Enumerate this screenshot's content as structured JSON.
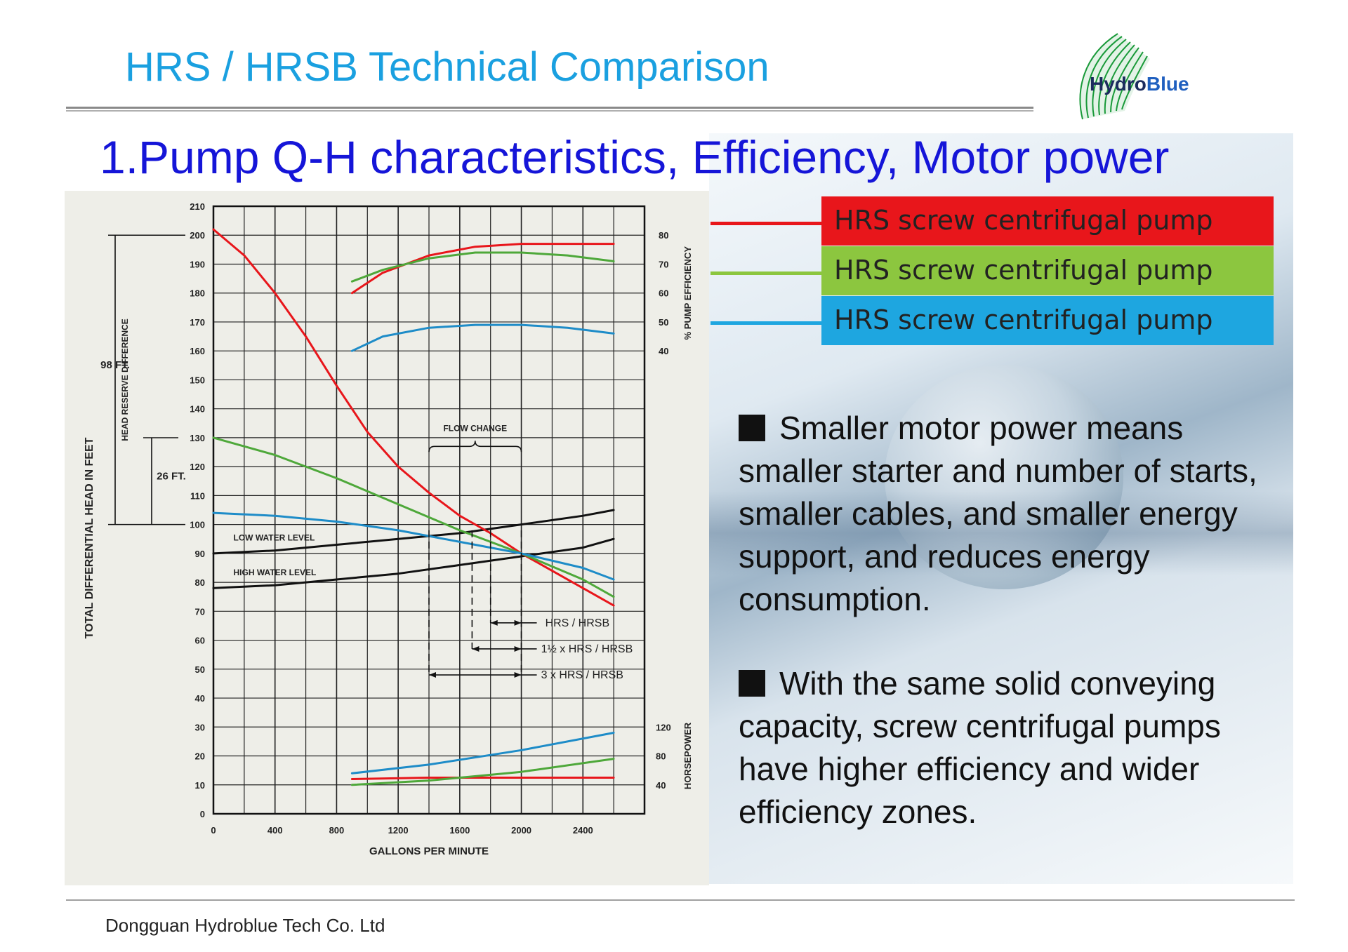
{
  "slide": {
    "title": "HRS / HRSB Technical Comparison",
    "section_heading": "1.Pump Q-H characteristics, Efficiency, Motor power",
    "footer": "Dongguan Hydroblue Tech Co. Ltd",
    "logo": {
      "text_dark": "Hydro",
      "text_blue": "Blue"
    }
  },
  "legend": [
    {
      "label": "HRS screw centrifugal pump",
      "color": "#e8161b"
    },
    {
      "label": "HRS screw centrifugal pump",
      "color": "#8cc63f"
    },
    {
      "label": "HRS screw centrifugal pump",
      "color": "#1ea6e0"
    }
  ],
  "bullets": [
    "Smaller motor power means smaller starter and number of starts, smaller cables, and smaller energy support, and reduces energy consumption.",
    "With the same solid conveying capacity, screw centrifugal pumps have higher efficiency and wider efficiency zones."
  ],
  "chart_data": {
    "type": "line",
    "xlabel": "GALLONS PER MINUTE",
    "ylabel": "TOTAL DIFFERENTIAL HEAD IN FEET",
    "y2label_efficiency": "% PUMP EFFICIENCY",
    "y2label_power": "HORSEPOWER",
    "x_ticks": [
      "0",
      "400",
      "800",
      "1200",
      "1600",
      "2000",
      "2400"
    ],
    "y_ticks": [
      "0",
      "10",
      "20",
      "30",
      "40",
      "50",
      "60",
      "70",
      "80",
      "90",
      "100",
      "110",
      "120",
      "130",
      "140",
      "150",
      "160",
      "170",
      "180",
      "190",
      "200",
      "210"
    ],
    "efficiency_ticks": [
      {
        "label": "80",
        "at": 200
      },
      {
        "label": "70",
        "at": 190
      },
      {
        "label": "60",
        "at": 180
      },
      {
        "label": "50",
        "at": 170
      },
      {
        "label": "40",
        "at": 160
      }
    ],
    "power_ticks": [
      {
        "label": "120",
        "at": 30
      },
      {
        "label": "80",
        "at": 20
      },
      {
        "label": "40",
        "at": 10
      }
    ],
    "xlim": [
      0,
      2800
    ],
    "ylim": [
      0,
      210
    ],
    "grid": true,
    "head_curves": [
      {
        "color": "#e8161b",
        "x": [
          0,
          200,
          400,
          600,
          800,
          1000,
          1200,
          1400,
          1600,
          1800,
          2000,
          2200,
          2400,
          2600
        ],
        "y": [
          202,
          193,
          180,
          165,
          148,
          132,
          120,
          111,
          103,
          97,
          90,
          84,
          78,
          72
        ]
      },
      {
        "color": "#4ea83a",
        "x": [
          0,
          400,
          800,
          1200,
          1600,
          2000,
          2400,
          2600
        ],
        "y": [
          130,
          124,
          116,
          107,
          98,
          90,
          81,
          75
        ]
      },
      {
        "color": "#1e8cc8",
        "x": [
          0,
          400,
          800,
          1200,
          1600,
          2000,
          2400,
          2600
        ],
        "y": [
          104,
          103,
          101,
          98,
          94,
          90,
          85,
          81
        ]
      }
    ],
    "system_curves": [
      {
        "label": "LOW WATER LEVEL",
        "x": [
          0,
          400,
          800,
          1200,
          1600,
          2000,
          2400,
          2600
        ],
        "y": [
          90,
          91,
          93,
          95,
          97,
          100,
          103,
          105
        ]
      },
      {
        "label": "HIGH WATER LEVEL",
        "x": [
          0,
          400,
          800,
          1200,
          1600,
          2000,
          2400,
          2600
        ],
        "y": [
          78,
          79,
          81,
          83,
          86,
          89,
          92,
          95
        ]
      }
    ],
    "efficiency_curves": [
      {
        "color": "#e8161b",
        "x": [
          900,
          1100,
          1400,
          1700,
          2000,
          2300,
          2600
        ],
        "y": [
          180,
          187,
          193,
          196,
          197,
          197,
          197
        ]
      },
      {
        "color": "#4ea83a",
        "x": [
          900,
          1100,
          1400,
          1700,
          2000,
          2300,
          2600
        ],
        "y": [
          184,
          188,
          192,
          194,
          194,
          193,
          191
        ]
      },
      {
        "color": "#1e8cc8",
        "x": [
          900,
          1100,
          1400,
          1700,
          2000,
          2300,
          2600
        ],
        "y": [
          160,
          165,
          168,
          169,
          169,
          168,
          166
        ]
      }
    ],
    "power_curves": [
      {
        "color": "#e8161b",
        "x": [
          900,
          1400,
          2000,
          2600
        ],
        "y": [
          12,
          12.5,
          12.5,
          12.5
        ]
      },
      {
        "color": "#4ea83a",
        "x": [
          900,
          1400,
          2000,
          2600
        ],
        "y": [
          10,
          11.5,
          14.5,
          19
        ]
      },
      {
        "color": "#1e8cc8",
        "x": [
          900,
          1400,
          2000,
          2600
        ],
        "y": [
          14,
          17,
          22,
          28
        ]
      }
    ],
    "annotations": {
      "head_reserve_label": "HEAD RESERVE DIFFERENCE",
      "span_98": {
        "label": "98 FT.",
        "from": 100,
        "to": 200
      },
      "span_26": {
        "label": "26 FT.",
        "from": 100,
        "to": 130
      },
      "flow_change_label": "FLOW CHANGE",
      "flow_arrows": [
        {
          "label": "HRS / HRSB",
          "from_x": 1800,
          "to_x": 2000,
          "y": 66
        },
        {
          "label": "1½ x HRS / HRSB",
          "from_x": 1680,
          "to_x": 2000,
          "y": 57
        },
        {
          "label": "3 x HRS / HRSB",
          "from_x": 1400,
          "to_x": 2000,
          "y": 48
        }
      ]
    }
  }
}
